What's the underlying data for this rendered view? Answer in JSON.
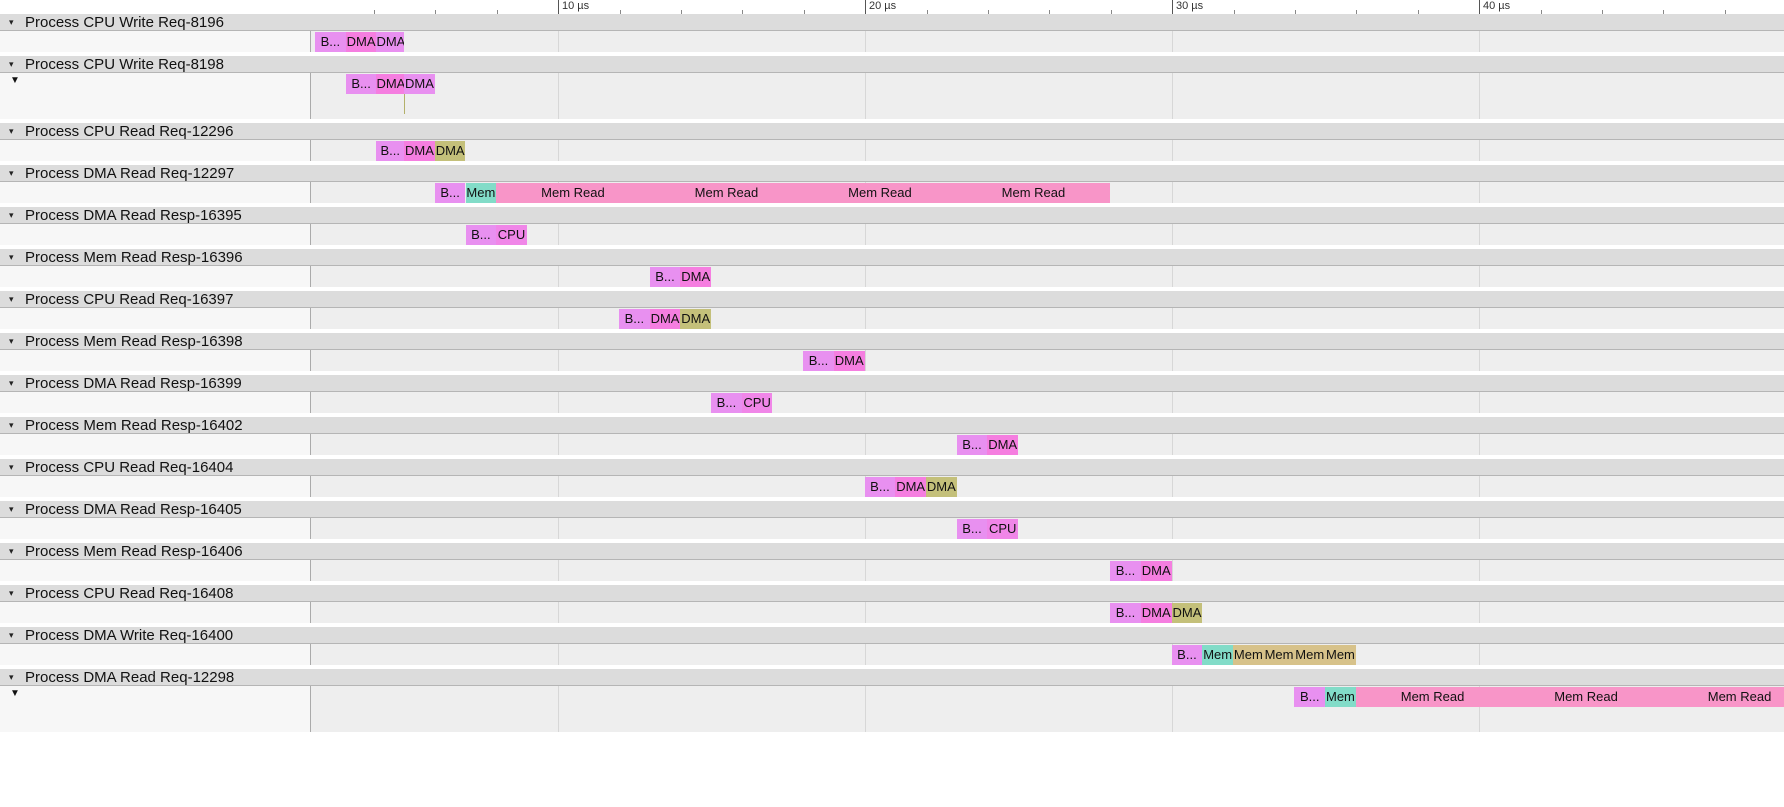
{
  "ruler": {
    "ticks": [
      {
        "label": "10 µs"
      },
      {
        "label": "20 µs"
      },
      {
        "label": "30 µs"
      },
      {
        "label": "40 µs"
      }
    ]
  },
  "colors": {
    "begin": "#e890f0",
    "dma_write": "#f57ee0",
    "dma_read": "#c4c07a",
    "mem_read": "#f895c8",
    "mem_start": "#82dcc8",
    "mem_chunk": "#d7c28a",
    "cpu": "#f086e8",
    "dma_resp": "#f183e3"
  },
  "tracks": [
    {
      "title": "Process CPU Write Req-8196",
      "expanded": false,
      "slices": [
        {
          "label": "B...",
          "color": "begin",
          "start": 0.1,
          "end": 1.1
        },
        {
          "label": "DMA",
          "color": "dma_write",
          "start": 1.1,
          "end": 2.1
        },
        {
          "label": "DMA",
          "color": "begin",
          "start": 2.1,
          "end": 3.0
        }
      ]
    },
    {
      "title": "Process CPU Write Req-8198",
      "expanded": true,
      "slices": [
        {
          "label": "B...",
          "color": "begin",
          "start": 1.1,
          "end": 2.1
        },
        {
          "label": "DMA",
          "color": "dma_write",
          "start": 2.1,
          "end": 3.0
        },
        {
          "label": "DMA",
          "color": "begin",
          "start": 3.0,
          "end": 4.0
        }
      ]
    },
    {
      "title": "Process CPU Read Req-12296",
      "expanded": false,
      "slices": [
        {
          "label": "B...",
          "color": "begin",
          "start": 2.1,
          "end": 3.0
        },
        {
          "label": "DMA",
          "color": "dma_write",
          "start": 3.0,
          "end": 4.0
        },
        {
          "label": "DMA",
          "color": "dma_read",
          "start": 4.0,
          "end": 5.0
        }
      ]
    },
    {
      "title": "Process DMA Read Req-12297",
      "expanded": false,
      "slices": [
        {
          "label": "B...",
          "color": "begin",
          "start": 4.0,
          "end": 5.0
        },
        {
          "label": "Mem",
          "color": "mem_start",
          "start": 5.0,
          "end": 6.0
        },
        {
          "label": "Mem Read",
          "color": "mem_read",
          "start": 6.0,
          "end": 11.0
        },
        {
          "label": "Mem Read",
          "color": "mem_read",
          "start": 11.0,
          "end": 16.0
        },
        {
          "label": "Mem Read",
          "color": "mem_read",
          "start": 16.0,
          "end": 21.0
        },
        {
          "label": "Mem Read",
          "color": "mem_read",
          "start": 21.0,
          "end": 26.0
        }
      ]
    },
    {
      "title": "Process DMA Read Resp-16395",
      "expanded": false,
      "slices": [
        {
          "label": "B...",
          "color": "begin",
          "start": 5.0,
          "end": 6.0
        },
        {
          "label": "CPU",
          "color": "cpu",
          "start": 6.0,
          "end": 7.0
        }
      ]
    },
    {
      "title": "Process Mem Read Resp-16396",
      "expanded": false,
      "slices": [
        {
          "label": "B...",
          "color": "begin",
          "start": 11.0,
          "end": 12.0
        },
        {
          "label": "DMA",
          "color": "dma_write",
          "start": 12.0,
          "end": 13.0
        }
      ]
    },
    {
      "title": "Process CPU Read Req-16397",
      "expanded": false,
      "slices": [
        {
          "label": "B...",
          "color": "begin",
          "start": 10.0,
          "end": 11.0
        },
        {
          "label": "DMA",
          "color": "dma_write",
          "start": 11.0,
          "end": 12.0
        },
        {
          "label": "DMA",
          "color": "dma_read",
          "start": 12.0,
          "end": 13.0
        }
      ]
    },
    {
      "title": "Process Mem Read Resp-16398",
      "expanded": false,
      "slices": [
        {
          "label": "B...",
          "color": "begin",
          "start": 16.0,
          "end": 17.0
        },
        {
          "label": "DMA",
          "color": "dma_write",
          "start": 17.0,
          "end": 18.0
        }
      ]
    },
    {
      "title": "Process DMA Read Resp-16399",
      "expanded": false,
      "slices": [
        {
          "label": "B...",
          "color": "begin",
          "start": 13.0,
          "end": 14.0
        },
        {
          "label": "CPU",
          "color": "cpu",
          "start": 14.0,
          "end": 15.0
        }
      ]
    },
    {
      "title": "Process Mem Read Resp-16402",
      "expanded": false,
      "slices": [
        {
          "label": "B...",
          "color": "begin",
          "start": 21.0,
          "end": 22.0
        },
        {
          "label": "DMA",
          "color": "dma_write",
          "start": 22.0,
          "end": 23.0
        }
      ]
    },
    {
      "title": "Process CPU Read Req-16404",
      "expanded": false,
      "slices": [
        {
          "label": "B...",
          "color": "begin",
          "start": 18.0,
          "end": 19.0
        },
        {
          "label": "DMA",
          "color": "dma_write",
          "start": 19.0,
          "end": 20.0
        },
        {
          "label": "DMA",
          "color": "dma_read",
          "start": 20.0,
          "end": 21.0
        }
      ]
    },
    {
      "title": "Process DMA Read Resp-16405",
      "expanded": false,
      "slices": [
        {
          "label": "B...",
          "color": "begin",
          "start": 21.0,
          "end": 22.0
        },
        {
          "label": "CPU",
          "color": "cpu",
          "start": 22.0,
          "end": 23.0
        }
      ]
    },
    {
      "title": "Process Mem Read Resp-16406",
      "expanded": false,
      "slices": [
        {
          "label": "B...",
          "color": "begin",
          "start": 26.0,
          "end": 27.0
        },
        {
          "label": "DMA",
          "color": "dma_write",
          "start": 27.0,
          "end": 28.0
        }
      ]
    },
    {
      "title": "Process CPU Read Req-16408",
      "expanded": false,
      "slices": [
        {
          "label": "B...",
          "color": "begin",
          "start": 26.0,
          "end": 27.0
        },
        {
          "label": "DMA",
          "color": "dma_write",
          "start": 27.0,
          "end": 28.0
        },
        {
          "label": "DMA",
          "color": "dma_read",
          "start": 28.0,
          "end": 29.0
        }
      ]
    },
    {
      "title": "Process DMA Write Req-16400",
      "expanded": false,
      "slices": [
        {
          "label": "B...",
          "color": "begin",
          "start": 28.0,
          "end": 29.0
        },
        {
          "label": "Mem",
          "color": "mem_start",
          "start": 29.0,
          "end": 30.0
        },
        {
          "label": "Mem",
          "color": "mem_chunk",
          "start": 30.0,
          "end": 31.0
        },
        {
          "label": "Mem",
          "color": "mem_chunk",
          "start": 31.0,
          "end": 32.0
        },
        {
          "label": "Mem",
          "color": "mem_chunk",
          "start": 32.0,
          "end": 33.0
        },
        {
          "label": "Mem",
          "color": "mem_chunk",
          "start": 33.0,
          "end": 34.0
        }
      ]
    },
    {
      "title": "Process DMA Read Req-12298",
      "expanded": true,
      "slices": [
        {
          "label": "B...",
          "color": "begin",
          "start": 32.0,
          "end": 33.0
        },
        {
          "label": "Mem",
          "color": "mem_start",
          "start": 33.0,
          "end": 34.0
        },
        {
          "label": "Mem Read",
          "color": "mem_read",
          "start": 34.0,
          "end": 39.0
        },
        {
          "label": "Mem Read",
          "color": "mem_read",
          "start": 39.0,
          "end": 44.0
        },
        {
          "label": "Mem Read",
          "color": "mem_read",
          "start": 44.0,
          "end": 49.0
        }
      ]
    }
  ]
}
